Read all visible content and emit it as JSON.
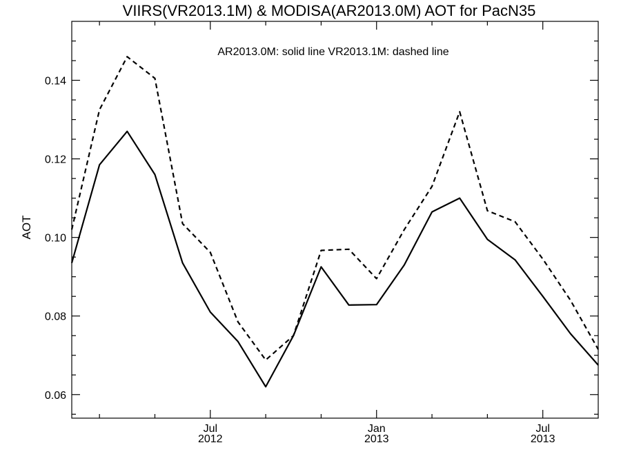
{
  "chart_data": {
    "type": "line",
    "title": "VIIRS(VR2013.1M) & MODISA(AR2013.0M)  AOT for PacN35",
    "legend_text": "AR2013.0M: solid line   VR2013.1M: dashed line",
    "xlabel": "",
    "ylabel": "AOT",
    "x": [
      "2012-02",
      "2012-03",
      "2012-04",
      "2012-05",
      "2012-06",
      "2012-07",
      "2012-08",
      "2012-09",
      "2012-10",
      "2012-11",
      "2012-12",
      "2013-01",
      "2013-02",
      "2013-03",
      "2013-04",
      "2013-05",
      "2013-06",
      "2013-07",
      "2013-08",
      "2013-09"
    ],
    "xlim": [
      "2012-02",
      "2013-09"
    ],
    "ylim": [
      0.054,
      0.155
    ],
    "yticks": [
      0.06,
      0.08,
      0.1,
      0.12,
      0.14
    ],
    "ytick_labels": [
      "0.06",
      "0.08",
      "0.10",
      "0.12",
      "0.14"
    ],
    "xticks_major": [
      {
        "x": "2012-07",
        "label_top": "Jul",
        "label_bottom": "2012"
      },
      {
        "x": "2013-01",
        "label_top": "Jan",
        "label_bottom": "2013"
      },
      {
        "x": "2013-07",
        "label_top": "Jul",
        "label_bottom": "2013"
      }
    ],
    "series": [
      {
        "style": "solid",
        "values": [
          0.0935,
          0.1185,
          0.127,
          0.116,
          0.0935,
          0.081,
          0.0735,
          0.062,
          0.075,
          0.0925,
          0.0828,
          0.0829,
          0.093,
          0.1065,
          0.11,
          0.0995,
          0.0943,
          0.085,
          0.0755,
          0.0675
        ]
      },
      {
        "style": "dashed",
        "values": [
          0.102,
          0.1325,
          0.146,
          0.1405,
          0.1035,
          0.0962,
          0.0785,
          0.0688,
          0.075,
          0.0967,
          0.097,
          0.0895,
          0.102,
          0.113,
          0.132,
          0.1068,
          0.104,
          0.0945,
          0.084,
          0.0715
        ]
      }
    ]
  }
}
